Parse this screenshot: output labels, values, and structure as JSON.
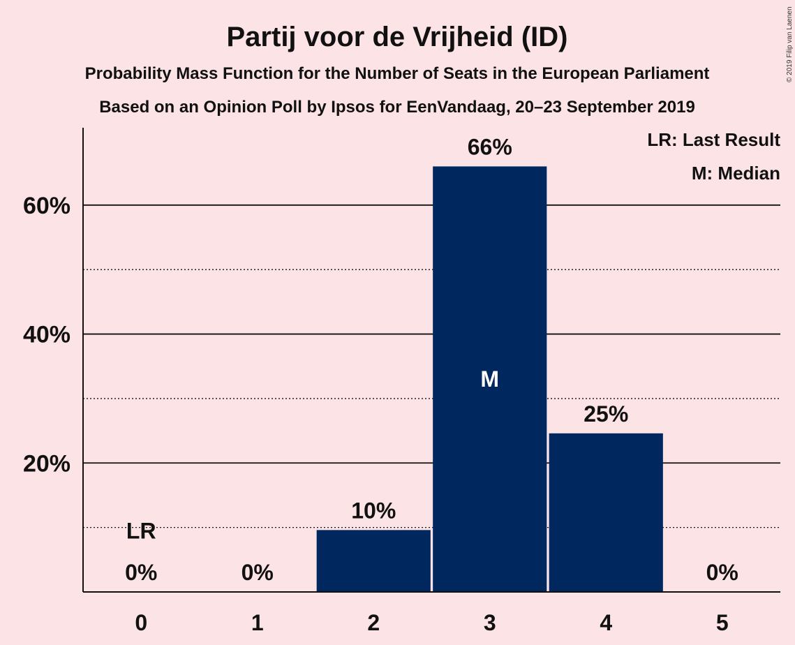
{
  "chart_data": {
    "type": "bar",
    "title": "Partij voor de Vrijheid (ID)",
    "subtitle_lines": [
      "Probability Mass Function for the Number of Seats in the European Parliament",
      "Based on an Opinion Poll by Ipsos for EenVandaag, 20–23 September 2019"
    ],
    "copyright": "© 2019 Filip van Laenen",
    "categories": [
      "0",
      "1",
      "2",
      "3",
      "4",
      "5"
    ],
    "values": [
      0,
      0,
      9.6,
      66,
      24.6,
      0
    ],
    "value_labels": [
      "0%",
      "0%",
      "10%",
      "66%",
      "25%",
      "0%"
    ],
    "ylim": [
      0,
      72
    ],
    "yticks": [
      {
        "value": 20,
        "label": "20%"
      },
      {
        "value": 40,
        "label": "40%"
      },
      {
        "value": 60,
        "label": "60%"
      }
    ],
    "minor_gridlines": [
      10,
      30,
      50
    ],
    "bar_color": "#00285e",
    "last_result": {
      "category": "0",
      "mark": "LR"
    },
    "median": {
      "category": "3",
      "mark": "M"
    },
    "legend": {
      "placement": "top-right",
      "entries": [
        "LR: Last Result",
        "M: Median"
      ]
    }
  }
}
